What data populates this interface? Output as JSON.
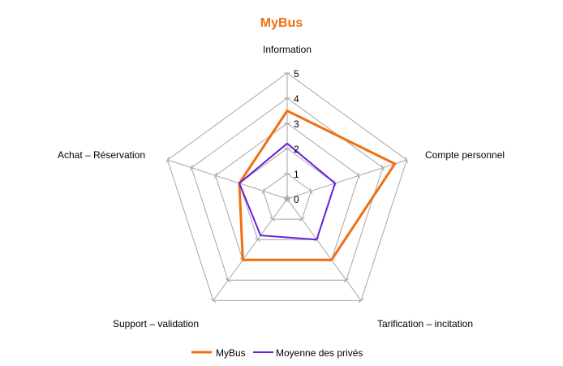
{
  "chart_data": {
    "type": "radar",
    "title": "MyBus",
    "axes": [
      "Information",
      "Compte personnel",
      "Tarification – incitation",
      "Support – validation",
      "Achat – Réservation"
    ],
    "rticks": [
      "0",
      "1",
      "2",
      "3",
      "4",
      "5"
    ],
    "rlim": [
      0,
      5
    ],
    "grid": true,
    "legend_position": "bottom",
    "series": [
      {
        "name": "MyBus",
        "values": [
          3.5,
          4.5,
          3.0,
          3.0,
          2.0
        ]
      },
      {
        "name": "Moyenne des privés",
        "values": [
          2.2,
          2.0,
          2.0,
          1.8,
          2.0
        ]
      }
    ]
  },
  "colors": {
    "title": "#f07010",
    "grid": "#a6a6a6",
    "mybus": "#f07010",
    "moyenne": "#6a1ee0",
    "text": "#000000"
  }
}
